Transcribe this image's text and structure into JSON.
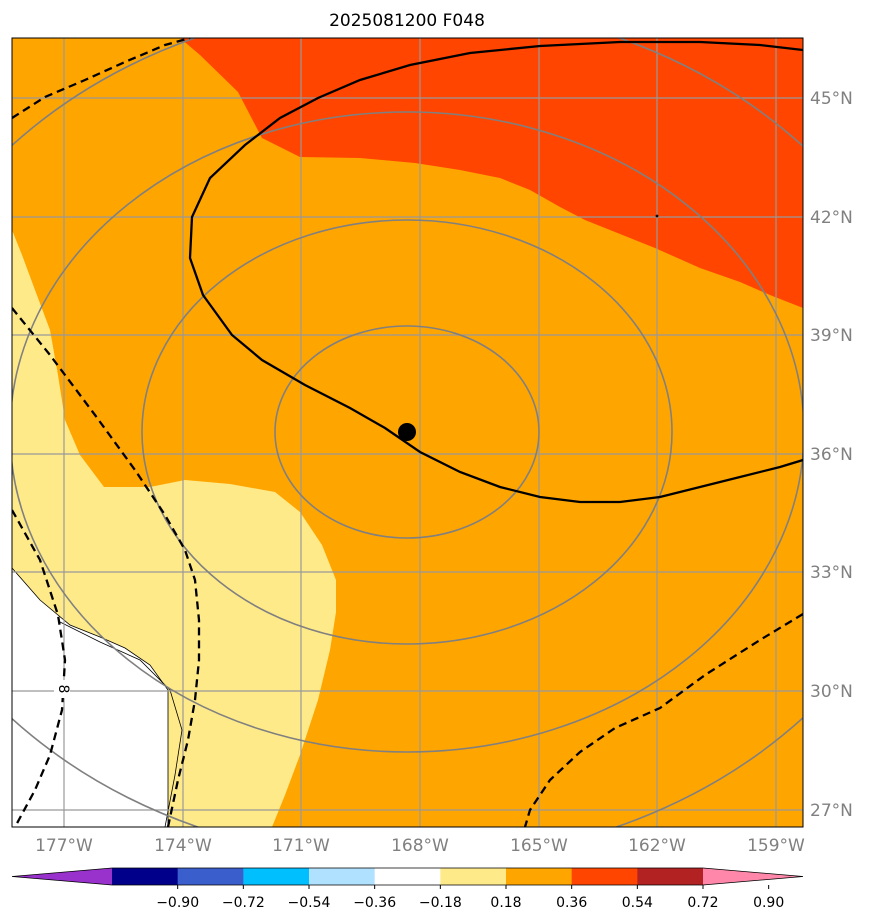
{
  "title": "2025081200 F048",
  "map": {
    "lon_labels": [
      "177°W",
      "174°W",
      "171°W",
      "168°W",
      "165°W",
      "162°W",
      "159°W"
    ],
    "lat_labels": [
      "45°N",
      "42°N",
      "39°N",
      "36°N",
      "33°N",
      "30°N",
      "27°N"
    ],
    "contour_label": "8",
    "storm_marker": {
      "lon": -168.3,
      "lat": 36.6
    }
  },
  "colorbar": {
    "tick_labels": [
      "−0.90",
      "−0.72",
      "−0.54",
      "−0.36",
      "−0.18",
      "0.18",
      "0.36",
      "0.54",
      "0.72",
      "0.90"
    ],
    "colors": [
      "#9932cc",
      "#00008b",
      "#3a5fcd",
      "#00bfff",
      "#b0e2ff",
      "#ffffff",
      "#ffea8a",
      "#ffa500",
      "#ff4500",
      "#b22222",
      "#ff88aa"
    ],
    "extend": "both"
  },
  "colors": {
    "orange": "#ffa500",
    "red_orange": "#ff4500",
    "light_yellow": "#ffea8a",
    "white": "#ffffff",
    "grid": "#999999",
    "gray_contour": "#808080",
    "black": "#000000"
  }
}
